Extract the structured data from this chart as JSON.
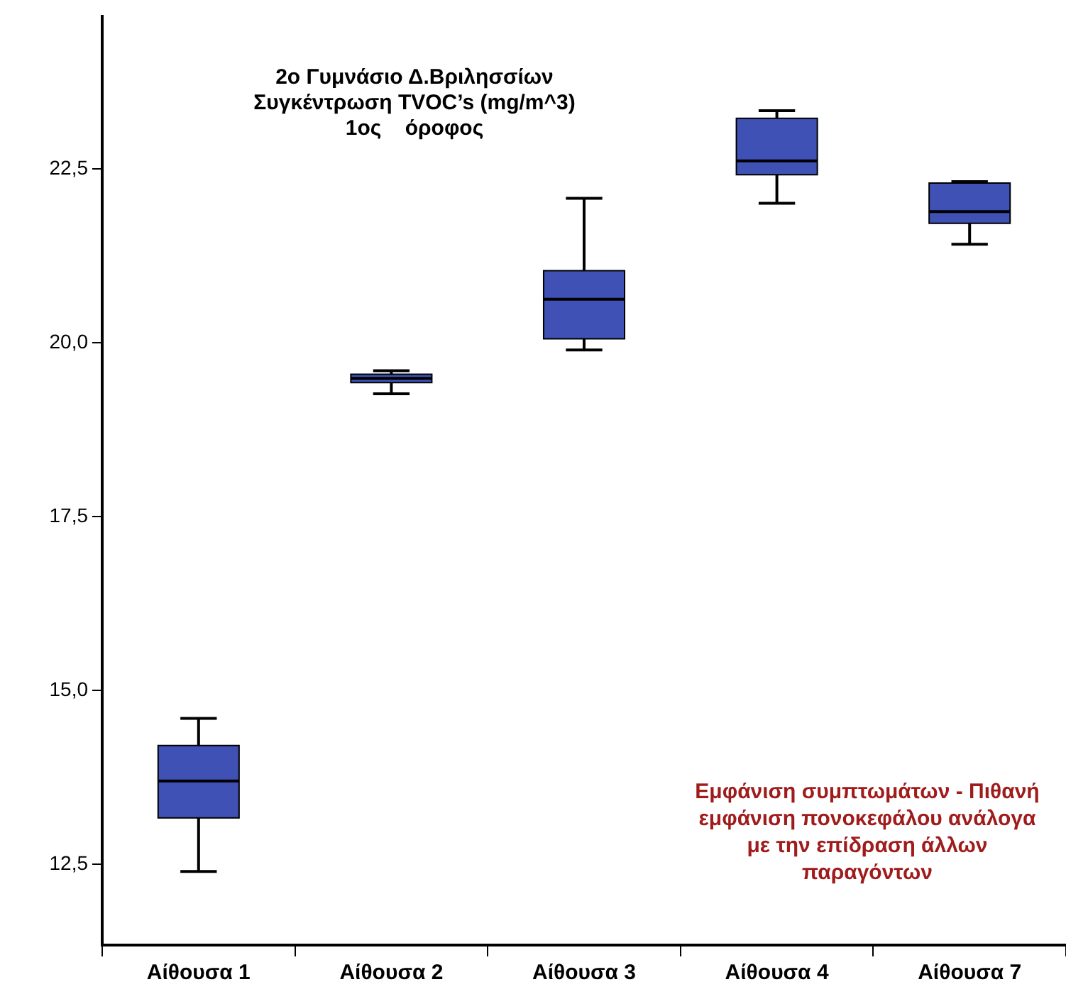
{
  "chart_data": {
    "type": "box",
    "title": "2ο Γυμνάσιο Δ.Βριλησσίων\nΣυγκέντρωση TVOC’s (mg/m^3)\n1ος    όροφος",
    "categories": [
      "Αίθουσα 1",
      "Αίθουσα 2",
      "Αίθουσα 3",
      "Αίθουσα 4",
      "Αίθουσα 7"
    ],
    "color": "#3f51b5",
    "boxes": [
      {
        "low": 12.4,
        "q1": 13.17,
        "median": 13.7,
        "q3": 14.21,
        "high": 14.6
      },
      {
        "low": 19.27,
        "q1": 19.43,
        "median": 19.49,
        "q3": 19.55,
        "high": 19.6
      },
      {
        "low": 19.9,
        "q1": 20.06,
        "median": 20.63,
        "q3": 21.04,
        "high": 22.08
      },
      {
        "low": 22.01,
        "q1": 22.42,
        "median": 22.62,
        "q3": 23.23,
        "high": 23.34
      },
      {
        "low": 21.42,
        "q1": 21.72,
        "median": 21.89,
        "q3": 22.3,
        "high": 22.32
      }
    ],
    "ylim": [
      11.34,
      24.7
    ],
    "yticks": [
      {
        "value": 12.5,
        "label": "12,5"
      },
      {
        "value": 15,
        "label": "15,0"
      },
      {
        "value": 17.5,
        "label": "17,5"
      },
      {
        "value": 20,
        "label": "20,0"
      },
      {
        "value": 22.5,
        "label": "22,5"
      }
    ],
    "grid": false,
    "legend": false,
    "annotations": [
      "Εμφάνιση συμπτωμάτων - Πιθανή\nεμφάνιση πονοκεφάλου ανάλογα\nμε την επίδραση άλλων\nπαραγόντων"
    ]
  }
}
